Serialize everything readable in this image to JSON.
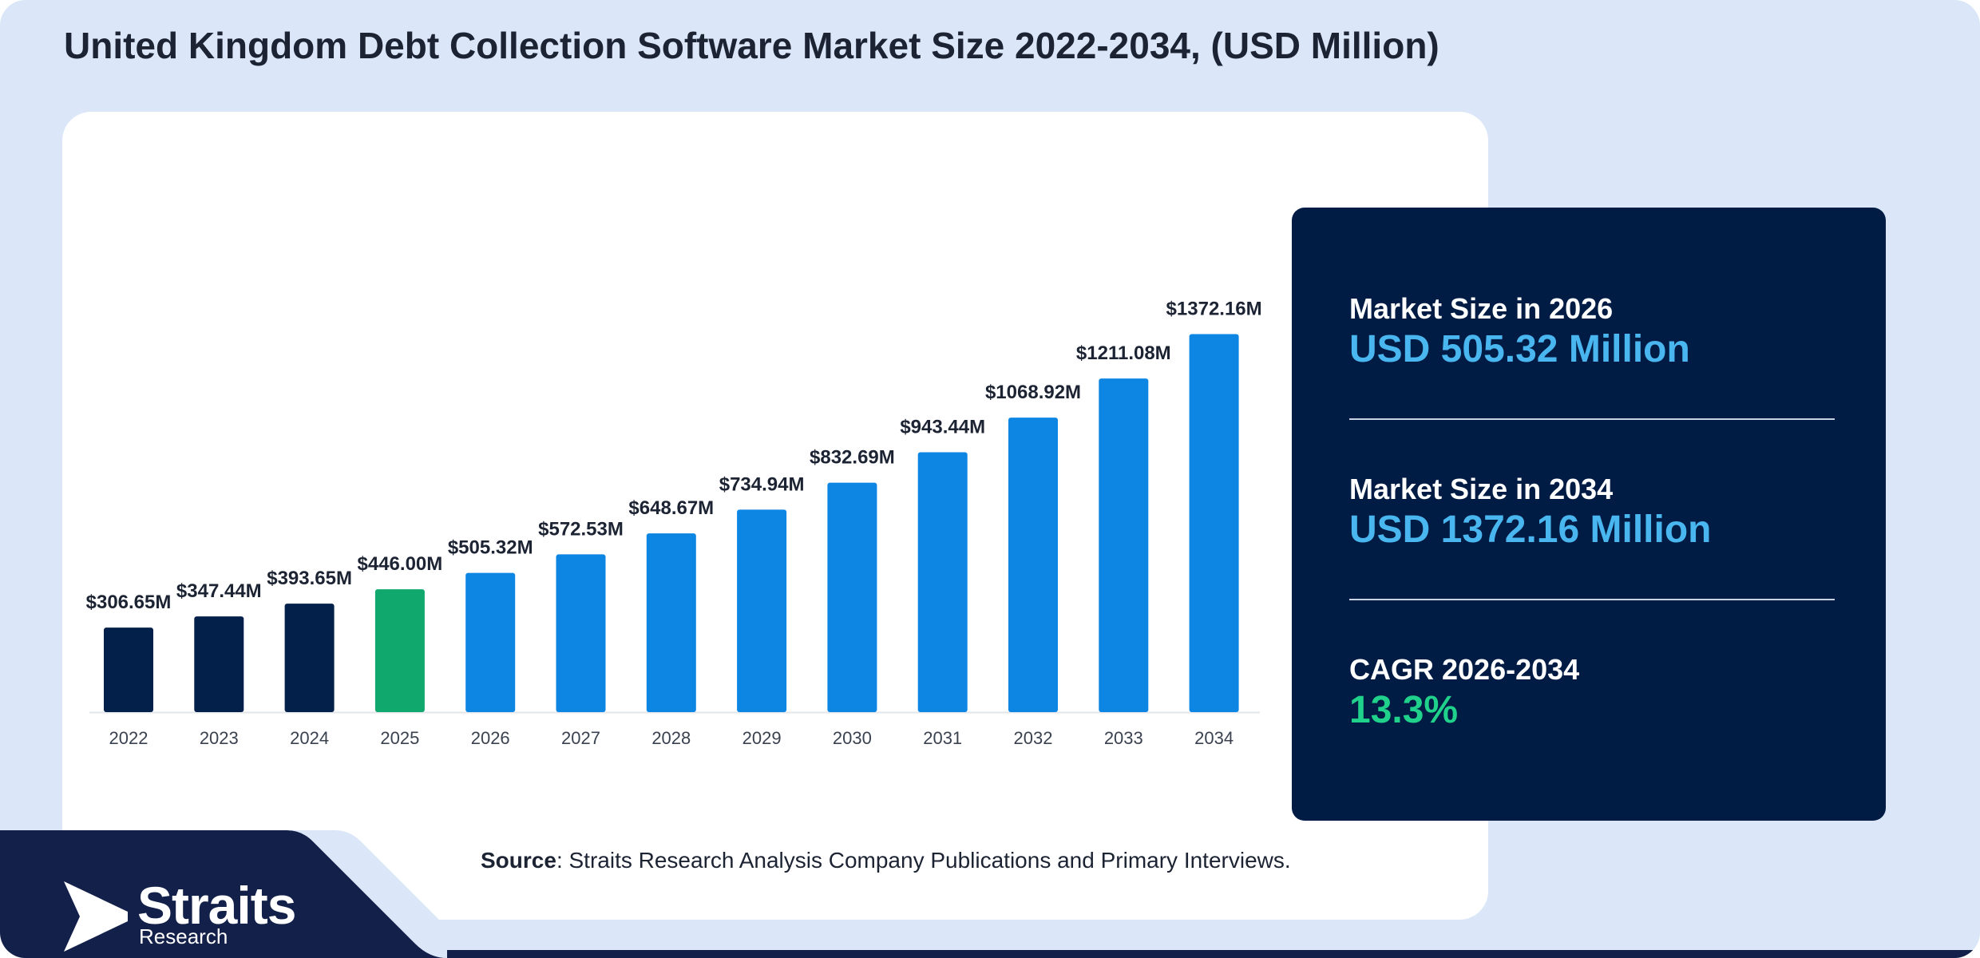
{
  "title": "United Kingdom Debt Collection Software Market Size 2022-2034, (USD Million)",
  "colors": {
    "historical": "#03204a",
    "base_year": "#10a86c",
    "forecast": "#0c85e3",
    "dark_panel": "#011c44",
    "accent_value": "#4ab6f0",
    "accent_cagr": "#1fd18a",
    "background": "#dbe7f9"
  },
  "chart_data": {
    "type": "bar",
    "categories": [
      "2022",
      "2023",
      "2024",
      "2025",
      "2026",
      "2027",
      "2028",
      "2029",
      "2030",
      "2031",
      "2032",
      "2033",
      "2034"
    ],
    "values": [
      306.65,
      347.44,
      393.65,
      446.0,
      505.32,
      572.53,
      648.67,
      734.94,
      832.69,
      943.44,
      1068.92,
      1211.08,
      1372.16
    ],
    "value_labels": [
      "$306.65M",
      "$347.44M",
      "$393.65M",
      "$446.00M",
      "$505.32M",
      "$572.53M",
      "$648.67M",
      "$734.94M",
      "$832.69M",
      "$943.44M",
      "$1068.92M",
      "$1211.08M",
      "$1372.16M"
    ],
    "bar_colors": [
      "#03204a",
      "#03204a",
      "#03204a",
      "#10a86c",
      "#0c85e3",
      "#0c85e3",
      "#0c85e3",
      "#0c85e3",
      "#0c85e3",
      "#0c85e3",
      "#0c85e3",
      "#0c85e3",
      "#0c85e3"
    ],
    "ylim": [
      0,
      1420
    ],
    "xlabel": "",
    "ylabel": "",
    "grid": false,
    "legend": "none"
  },
  "stats": [
    {
      "label": "Market Size in 2026",
      "value": "USD 505.32 Million",
      "accent": "blue"
    },
    {
      "label": "Market Size in 2034",
      "value": "USD 1372.16 Million",
      "accent": "blue"
    },
    {
      "label": "CAGR 2026-2034",
      "value": "13.3%",
      "accent": "green"
    }
  ],
  "source": {
    "prefix": "Source",
    "text": ": Straits Research Analysis Company Publications and Primary Interviews."
  },
  "logo": {
    "name": "Straits",
    "sub": "Research",
    "icon": "straits-arrow-logo-icon"
  }
}
